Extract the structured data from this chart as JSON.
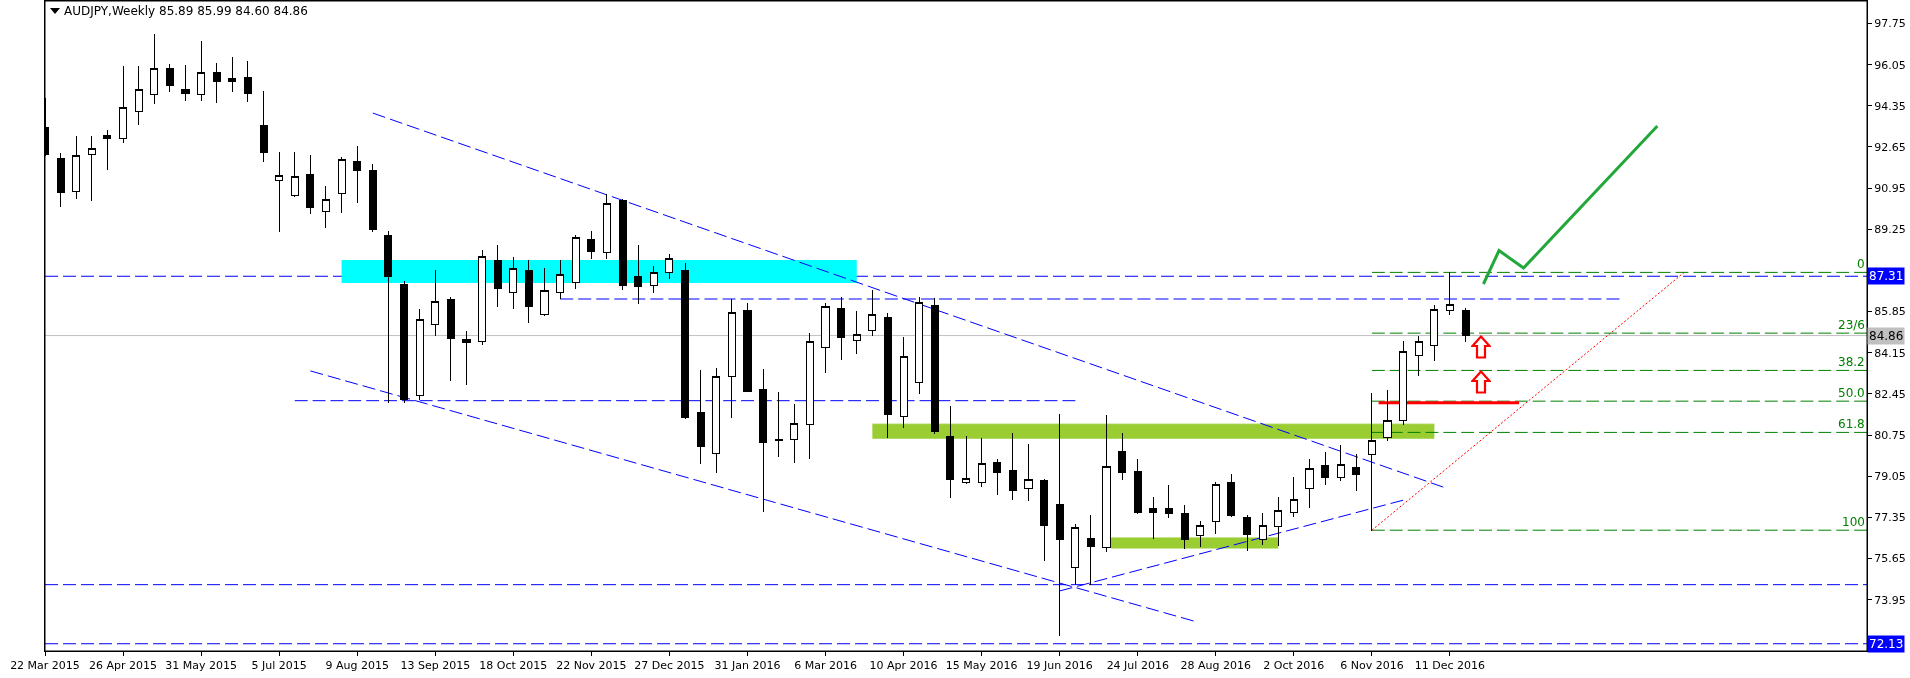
{
  "chart_data": {
    "type": "candlestick",
    "title": "AUDJPY,Weekly 85.89 85.99 84.60 84.86",
    "x": [
      "2015-03-22",
      "2015-03-29",
      "2015-04-05",
      "2015-04-12",
      "2015-04-19",
      "2015-04-26",
      "2015-05-03",
      "2015-05-10",
      "2015-05-17",
      "2015-05-24",
      "2015-05-31",
      "2015-06-07",
      "2015-06-14",
      "2015-06-21",
      "2015-06-28",
      "2015-07-05",
      "2015-07-12",
      "2015-07-19",
      "2015-07-26",
      "2015-08-02",
      "2015-08-09",
      "2015-08-16",
      "2015-08-23",
      "2015-08-30",
      "2015-09-06",
      "2015-09-13",
      "2015-09-20",
      "2015-09-27",
      "2015-10-04",
      "2015-10-11",
      "2015-10-18",
      "2015-10-25",
      "2015-11-01",
      "2015-11-08",
      "2015-11-15",
      "2015-11-22",
      "2015-11-29",
      "2015-12-06",
      "2015-12-13",
      "2015-12-20",
      "2015-12-27",
      "2016-01-03",
      "2016-01-10",
      "2016-01-17",
      "2016-01-24",
      "2016-01-31",
      "2016-02-07",
      "2016-02-14",
      "2016-02-21",
      "2016-02-28",
      "2016-03-06",
      "2016-03-13",
      "2016-03-20",
      "2016-03-27",
      "2016-04-03",
      "2016-04-10",
      "2016-04-17",
      "2016-04-24",
      "2016-05-01",
      "2016-05-08",
      "2016-05-15",
      "2016-05-22",
      "2016-05-29",
      "2016-06-05",
      "2016-06-12",
      "2016-06-19",
      "2016-06-26",
      "2016-07-03",
      "2016-07-10",
      "2016-07-17",
      "2016-07-24",
      "2016-07-31",
      "2016-08-07",
      "2016-08-14",
      "2016-08-21",
      "2016-08-28",
      "2016-09-04",
      "2016-09-11",
      "2016-09-18",
      "2016-09-25",
      "2016-10-02",
      "2016-10-09",
      "2016-10-16",
      "2016-10-23",
      "2016-10-30",
      "2016-11-06",
      "2016-11-13",
      "2016-11-20",
      "2016-11-27",
      "2016-12-04",
      "2016-12-11",
      "2016-12-18"
    ],
    "ohlc": [
      [
        93.46,
        94.66,
        92.3,
        92.34
      ],
      [
        92.19,
        92.39,
        90.19,
        90.78
      ],
      [
        90.82,
        93.07,
        90.51,
        92.28
      ],
      [
        92.34,
        93.07,
        90.44,
        92.57
      ],
      [
        93.14,
        93.34,
        91.71,
        93.01
      ],
      [
        93.01,
        95.96,
        92.84,
        94.3
      ],
      [
        94.12,
        95.96,
        93.59,
        95.03
      ],
      [
        94.8,
        97.29,
        94.44,
        95.91
      ],
      [
        95.91,
        96.05,
        94.94,
        95.2
      ],
      [
        95.03,
        96.0,
        94.57,
        94.87
      ],
      [
        94.8,
        97.0,
        94.57,
        95.73
      ],
      [
        95.73,
        96.11,
        94.48,
        95.37
      ],
      [
        95.46,
        96.34,
        94.94,
        95.34
      ],
      [
        95.5,
        96.2,
        94.53,
        94.84
      ],
      [
        93.55,
        94.96,
        92.05,
        92.44
      ],
      [
        91.25,
        92.41,
        89.16,
        91.46
      ],
      [
        90.64,
        92.44,
        90.6,
        91.44
      ],
      [
        91.53,
        92.28,
        89.91,
        90.16
      ],
      [
        90.0,
        91.03,
        89.33,
        90.46
      ],
      [
        90.71,
        92.23,
        89.96,
        92.14
      ],
      [
        92.07,
        92.68,
        90.37,
        91.69
      ],
      [
        91.69,
        91.91,
        89.16,
        89.24
      ],
      [
        89.01,
        89.17,
        82.11,
        87.3
      ],
      [
        86.99,
        87.08,
        82.11,
        82.2
      ],
      [
        82.38,
        85.92,
        82.2,
        85.53
      ],
      [
        85.33,
        87.53,
        84.88,
        86.28
      ],
      [
        86.33,
        86.42,
        83.01,
        84.74
      ],
      [
        84.71,
        85.03,
        82.83,
        84.58
      ],
      [
        84.62,
        88.37,
        84.49,
        88.14
      ],
      [
        87.98,
        88.6,
        86.05,
        86.81
      ],
      [
        86.64,
        88.1,
        85.99,
        87.65
      ],
      [
        87.56,
        87.98,
        85.4,
        86.06
      ],
      [
        85.74,
        87.62,
        85.69,
        86.74
      ],
      [
        86.64,
        87.96,
        86.4,
        87.4
      ],
      [
        87.06,
        88.99,
        86.8,
        88.9
      ],
      [
        88.82,
        89.14,
        88.05,
        88.35
      ],
      [
        88.3,
        90.69,
        88.05,
        90.33
      ],
      [
        90.42,
        90.46,
        86.76,
        86.94
      ],
      [
        87.28,
        88.6,
        86.19,
        86.9
      ],
      [
        86.94,
        87.71,
        86.64,
        87.48
      ],
      [
        87.48,
        88.21,
        87.21,
        88.05
      ],
      [
        87.56,
        87.85,
        81.45,
        81.49
      ],
      [
        81.7,
        83.4,
        79.58,
        80.29
      ],
      [
        79.97,
        83.51,
        79.2,
        83.17
      ],
      [
        83.15,
        86.37,
        81.49,
        85.8
      ],
      [
        85.88,
        86.19,
        82.53,
        82.56
      ],
      [
        82.65,
        83.47,
        77.59,
        80.45
      ],
      [
        80.58,
        82.49,
        79.85,
        80.51
      ],
      [
        80.58,
        82.03,
        79.63,
        81.24
      ],
      [
        81.17,
        84.94,
        79.79,
        84.63
      ],
      [
        84.38,
        86.19,
        83.33,
        86.08
      ],
      [
        85.96,
        86.42,
        83.87,
        84.79
      ],
      [
        84.67,
        85.87,
        84.12,
        84.92
      ],
      [
        85.05,
        86.72,
        84.88,
        85.71
      ],
      [
        85.62,
        85.78,
        80.65,
        81.61
      ],
      [
        81.52,
        84.79,
        81.06,
        84.01
      ],
      [
        82.94,
        86.42,
        82.47,
        86.21
      ],
      [
        86.12,
        86.39,
        80.83,
        80.9
      ],
      [
        80.7,
        81.94,
        78.18,
        78.93
      ],
      [
        78.79,
        80.68,
        78.75,
        78.97
      ],
      [
        78.81,
        80.6,
        78.63,
        79.56
      ],
      [
        79.61,
        79.76,
        78.31,
        79.22
      ],
      [
        79.27,
        80.81,
        78.09,
        78.45
      ],
      [
        78.54,
        80.36,
        78.04,
        78.9
      ],
      [
        78.86,
        78.9,
        75.56,
        77.02
      ],
      [
        77.88,
        81.61,
        72.46,
        76.43
      ],
      [
        75.29,
        77.06,
        74.56,
        76.93
      ],
      [
        76.47,
        77.41,
        74.57,
        76.13
      ],
      [
        76.11,
        81.54,
        75.93,
        79.47
      ],
      [
        80.06,
        80.81,
        78.93,
        79.2
      ],
      [
        79.24,
        79.74,
        77.5,
        77.56
      ],
      [
        77.7,
        78.18,
        76.49,
        77.56
      ],
      [
        77.7,
        78.68,
        77.36,
        77.52
      ],
      [
        77.5,
        77.83,
        76.07,
        76.43
      ],
      [
        76.61,
        77.2,
        76.13,
        77.02
      ],
      [
        77.2,
        78.81,
        76.7,
        78.72
      ],
      [
        78.81,
        79.13,
        77.38,
        77.43
      ],
      [
        77.36,
        77.43,
        76.0,
        76.65
      ],
      [
        76.45,
        77.5,
        76.22,
        77.02
      ],
      [
        76.97,
        78.18,
        76.18,
        77.65
      ],
      [
        77.56,
        79.0,
        77.38,
        78.09
      ],
      [
        78.54,
        79.76,
        77.77,
        79.38
      ],
      [
        79.51,
        80.04,
        78.72,
        79.0
      ],
      [
        79.0,
        80.33,
        78.86,
        79.52
      ],
      [
        79.43,
        79.93,
        78.45,
        79.13
      ],
      [
        79.93,
        82.47,
        76.82,
        80.52
      ],
      [
        80.65,
        82.6,
        80.54,
        81.36
      ],
      [
        81.35,
        84.62,
        81.17,
        84.2
      ],
      [
        84.03,
        84.83,
        83.19,
        84.62
      ],
      [
        84.47,
        86.12,
        83.81,
        85.92
      ],
      [
        85.9,
        87.47,
        85.74,
        86.14
      ],
      [
        85.89,
        85.99,
        84.6,
        84.86
      ]
    ],
    "xlim": [
      "2015-03-22",
      "2017-06-16"
    ],
    "ylim": [
      71.83,
      98.68
    ],
    "xticks": [
      {
        "value": "2015-03-22",
        "label": "22 Mar 2015"
      },
      {
        "value": "2015-04-26",
        "label": "26 Apr 2015"
      },
      {
        "value": "2015-05-31",
        "label": "31 May 2015"
      },
      {
        "value": "2015-07-05",
        "label": "5 Jul 2015"
      },
      {
        "value": "2015-08-09",
        "label": "9 Aug 2015"
      },
      {
        "value": "2015-09-13",
        "label": "13 Sep 2015"
      },
      {
        "value": "2015-10-18",
        "label": "18 Oct 2015"
      },
      {
        "value": "2015-11-22",
        "label": "22 Nov 2015"
      },
      {
        "value": "2015-12-27",
        "label": "27 Dec 2015"
      },
      {
        "value": "2016-01-31",
        "label": "31 Jan 2016"
      },
      {
        "value": "2016-03-06",
        "label": "6 Mar 2016"
      },
      {
        "value": "2016-04-10",
        "label": "10 Apr 2016"
      },
      {
        "value": "2016-05-15",
        "label": "15 May 2016"
      },
      {
        "value": "2016-06-19",
        "label": "19 Jun 2016"
      },
      {
        "value": "2016-07-24",
        "label": "24 Jul 2016"
      },
      {
        "value": "2016-08-28",
        "label": "28 Aug 2016"
      },
      {
        "value": "2016-10-02",
        "label": "2 Oct 2016"
      },
      {
        "value": "2016-11-06",
        "label": "6 Nov 2016"
      },
      {
        "value": "2016-12-11",
        "label": "11 Dec 2016"
      }
    ],
    "yticks": [
      97.75,
      96.05,
      94.35,
      92.65,
      90.95,
      89.25,
      {
        "value": 87.55,
        "label": null
      },
      85.85,
      84.15,
      82.45,
      80.75,
      79.05,
      77.35,
      75.65,
      73.95
    ],
    "series": [
      {
        "type": "line",
        "x": [
          "2015-08-02",
          "2016-03-20"
        ],
        "values": [
          87.96,
          87.96
        ],
        "lower": [
          87.03,
          87.03
        ],
        "upper": [
          87.96,
          87.96
        ],
        "color": "#00ffff"
      },
      {
        "type": "line",
        "x": [
          "2016-03-27",
          "2016-12-04"
        ],
        "values": [
          81.2,
          81.2
        ],
        "lower": [
          80.6,
          80.6
        ],
        "upper": [
          81.2,
          81.2
        ],
        "color": "#9acd32"
      },
      {
        "type": "line",
        "x": [
          "2016-07-12",
          "2016-09-25"
        ],
        "values": [
          76.5,
          76.5
        ],
        "lower": [
          76.06,
          76.06
        ],
        "upper": [
          76.5,
          76.5
        ],
        "color": "#9acd32"
      },
      {
        "type": "line",
        "x": [
          "2015-08-16",
          "2016-12-08"
        ],
        "values": [
          94.05,
          78.6
        ],
        "color": "#0000ff",
        "line_style": "dashed"
      },
      {
        "type": "line",
        "x": [
          "2015-07-19",
          "2016-08-18"
        ],
        "values": [
          83.4,
          73.07
        ],
        "color": "#0000ff",
        "line_style": "dashed"
      },
      {
        "type": "line",
        "x": [
          "2016-06-19",
          "2016-11-20"
        ],
        "values": [
          74.31,
          78.06
        ],
        "color": "#0000ff",
        "line_style": "dashed"
      },
      {
        "type": "line",
        "x": [
          "2015-11-08",
          "2017-02-25"
        ],
        "values": [
          86.37,
          86.37
        ],
        "color": "#0000ff",
        "line_style": "dashed"
      },
      {
        "type": "line",
        "x": [
          "2015-07-12",
          "2016-06-26"
        ],
        "values": [
          82.17,
          82.17
        ],
        "color": "#0000ff",
        "line_style": "dashed"
      },
      {
        "type": "line",
        "name": "0",
        "x": [
          "2016-11-06",
          "2017-06-16"
        ],
        "values": [
          87.47,
          87.47
        ],
        "color": "#008000",
        "line_style": "dashed"
      },
      {
        "type": "line",
        "name": "23/6",
        "x": [
          "2016-11-06",
          "2017-06-16"
        ],
        "values": [
          84.96,
          84.96
        ],
        "color": "#008000",
        "line_style": "dashed"
      },
      {
        "type": "line",
        "name": "38.2",
        "x": [
          "2016-11-06",
          "2017-06-16"
        ],
        "values": [
          83.42,
          83.42
        ],
        "color": "#008000",
        "line_style": "dashed"
      },
      {
        "type": "line",
        "name": "50.0",
        "x": [
          "2016-11-06",
          "2017-06-16"
        ],
        "values": [
          82.15,
          82.15
        ],
        "color": "#008000",
        "line_style": "dashed"
      },
      {
        "type": "line",
        "name": "61.8",
        "x": [
          "2016-11-06",
          "2017-06-16"
        ],
        "values": [
          80.86,
          80.86
        ],
        "color": "#008000",
        "line_style": "dashed"
      },
      {
        "type": "line",
        "name": "100",
        "x": [
          "2016-11-06",
          "2017-06-16"
        ],
        "values": [
          76.82,
          76.82
        ],
        "color": "#008000",
        "line_style": "dashed"
      },
      {
        "type": "line",
        "x": [
          "2016-11-06",
          "2017-03-26"
        ],
        "values": [
          76.82,
          87.47
        ],
        "color": "#ff0000",
        "line_style": "dotted"
      },
      {
        "type": "line",
        "x": [
          "2016-11-09",
          "2017-01-11"
        ],
        "values": [
          82.08,
          82.08
        ],
        "color": "#ff0000",
        "line_style": "solid"
      },
      {
        "type": "line",
        "x": [
          "2016-12-26",
          "2017-01-02",
          "2017-01-13",
          "2017-03-14"
        ],
        "values": [
          86.99,
          88.37,
          87.65,
          93.52
        ],
        "color": "#22a83a",
        "line_style": "solid"
      }
    ],
    "ref_lines": [
      {
        "axis": "y",
        "value": 87.31,
        "label": "87.31",
        "color": "#0000ff",
        "line_style": "dashed"
      },
      {
        "axis": "y",
        "value": 74.57,
        "color": "#0000ff",
        "line_style": "dashed"
      },
      {
        "axis": "y",
        "value": 72.13,
        "label": "72.13",
        "color": "#0000ff",
        "line_style": "dashed"
      },
      {
        "axis": "y",
        "value": 84.86,
        "label": "84.86",
        "color": "#c0c0c0",
        "line_style": "solid"
      }
    ]
  }
}
